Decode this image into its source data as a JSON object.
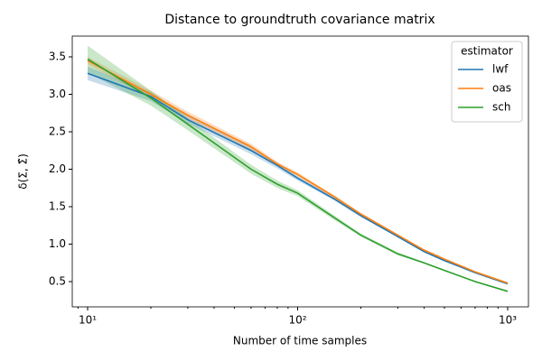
{
  "chart_data": {
    "type": "line",
    "title": "Distance to groundtruth covariance matrix",
    "x_label": "Number of time samples",
    "y_label": "δ(Σ, Σ̂)",
    "x_scale": "log",
    "x": [
      10,
      20,
      30,
      60,
      80,
      100,
      150,
      200,
      300,
      400,
      500,
      700,
      1000
    ],
    "series": [
      {
        "name": "lwf",
        "color": "#1f77b4",
        "values": [
          3.28,
          2.97,
          2.66,
          2.25,
          2.05,
          1.88,
          1.6,
          1.38,
          1.1,
          0.9,
          0.78,
          0.62,
          0.47
        ],
        "error": [
          0.09,
          0.06,
          0.05,
          0.05,
          0.04,
          0.03,
          0.02,
          0.02,
          0.01,
          0.01,
          0.01,
          0.01,
          0.01
        ]
      },
      {
        "name": "oas",
        "color": "#ff7f0e",
        "values": [
          3.45,
          3.0,
          2.72,
          2.3,
          2.07,
          1.93,
          1.63,
          1.4,
          1.12,
          0.92,
          0.8,
          0.63,
          0.48
        ],
        "error": [
          0.05,
          0.05,
          0.05,
          0.04,
          0.03,
          0.03,
          0.02,
          0.02,
          0.01,
          0.01,
          0.01,
          0.01,
          0.01
        ]
      },
      {
        "name": "sch",
        "color": "#2ca02c",
        "values": [
          3.47,
          2.95,
          2.6,
          2.0,
          1.8,
          1.68,
          1.35,
          1.12,
          0.87,
          0.75,
          0.65,
          0.5,
          0.37
        ],
        "error": [
          0.18,
          0.1,
          0.08,
          0.06,
          0.05,
          0.04,
          0.03,
          0.02,
          0.02,
          0.01,
          0.01,
          0.01,
          0.01
        ]
      }
    ],
    "legend_title": "estimator",
    "legend": "upper right",
    "xlim": [
      8.45,
      1256
    ],
    "xticks": [
      {
        "value": 10,
        "label": "10¹"
      },
      {
        "value": 100,
        "label": "10²"
      },
      {
        "value": 1000,
        "label": "10³"
      }
    ],
    "ylim": [
      0.163,
      3.777
    ],
    "yticks": [
      0.5,
      {
        "value": 1,
        "label": "1.0"
      },
      1.5,
      {
        "value": 2,
        "label": "2.0"
      },
      2.5,
      {
        "value": 3,
        "label": "3.0"
      },
      3.5
    ],
    "grid": false
  }
}
